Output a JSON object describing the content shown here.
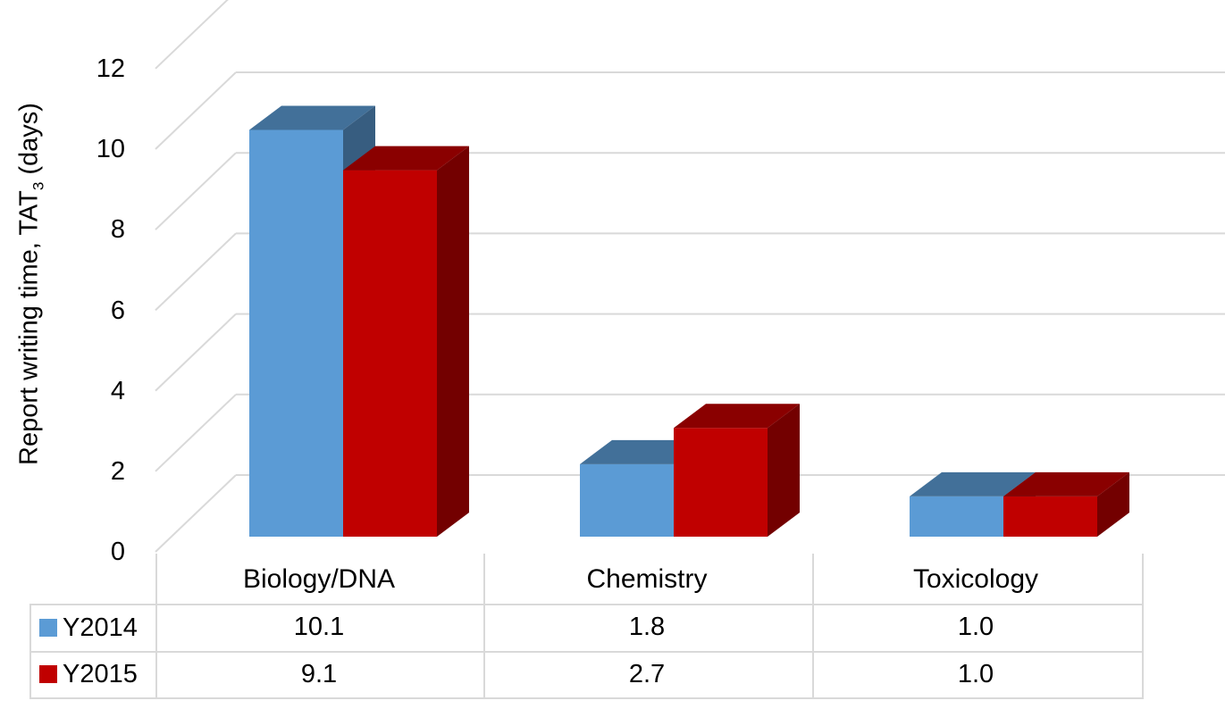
{
  "chart_data": {
    "type": "bar",
    "style": "3d-clustered-column-with-data-table",
    "ylabel_main": "Report writing time, TAT",
    "ylabel_sub": "3",
    "ylabel_unit": " (days)",
    "ylim": [
      0,
      12
    ],
    "yticks": [
      "0",
      "2",
      "4",
      "6",
      "8",
      "10",
      "12"
    ],
    "categories": [
      "Biology/DNA",
      "Chemistry",
      "Toxicology"
    ],
    "series": [
      {
        "name": "Y2014",
        "color": "#5B9BD5",
        "values": [
          10.1,
          1.8,
          1.0
        ],
        "labels": [
          "10.1",
          "1.8",
          "1.0"
        ]
      },
      {
        "name": "Y2015",
        "color": "#C00000",
        "values": [
          9.1,
          2.7,
          1.0
        ],
        "labels": [
          "9.1",
          "2.7",
          "1.0"
        ]
      }
    ],
    "grid": true,
    "legend": "data-table-left"
  }
}
